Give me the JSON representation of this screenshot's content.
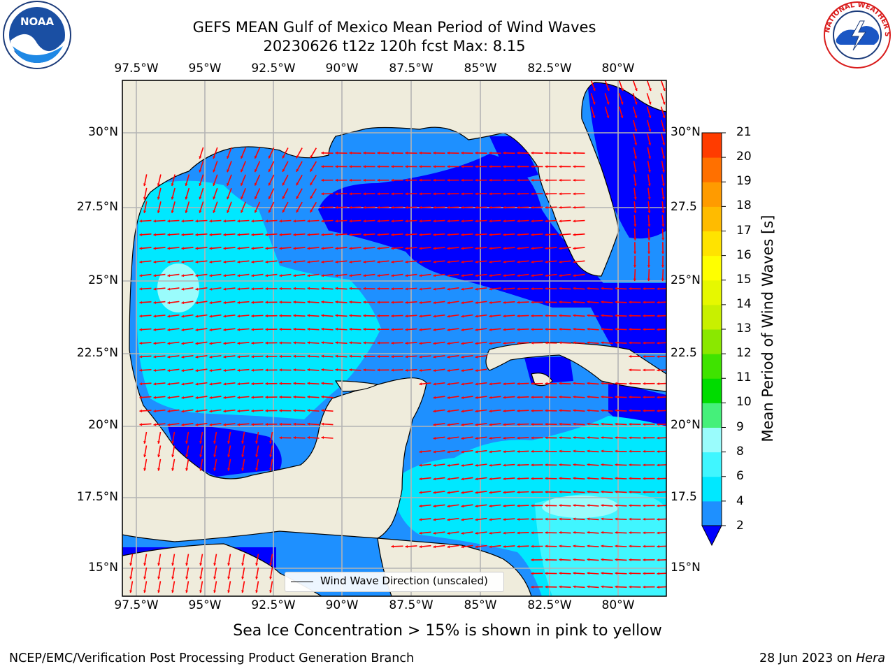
{
  "title": {
    "line1": "GEFS MEAN Gulf of Mexico Mean Period of Wind Waves",
    "line2": "20230626 t12z 120h fcst   Max: 8.15"
  },
  "logos": {
    "left": {
      "name": "noaa-logo",
      "text": "NOAA"
    },
    "right": {
      "name": "nws-logo",
      "text": "NATIONAL WEATHER SERVICE"
    }
  },
  "map": {
    "lon_ticks": [
      "97.5°W",
      "95°W",
      "92.5°W",
      "90°W",
      "87.5°W",
      "85°W",
      "82.5°W",
      "80°W"
    ],
    "lat_ticks_left": [
      "30°N",
      "27.5°N",
      "25°N",
      "22.5°N",
      "20°N",
      "17.5°N",
      "15°N"
    ],
    "lat_ticks_right": [
      "30°N",
      "27.5",
      "25°N",
      "22.5",
      "20°N",
      "17.5",
      "15°N"
    ],
    "legend_label": "Wind Wave Direction (unscaled)",
    "land_color": "#efecdc",
    "arrow_color": "#ff0000",
    "grid_color": "#b4b4b4"
  },
  "colorbar": {
    "label": "Mean Period of Wind Waves [s]",
    "ticks": [
      "2",
      "4",
      "6",
      "8",
      "9",
      "10",
      "11",
      "12",
      "13",
      "14",
      "15",
      "16",
      "17",
      "18",
      "19",
      "20",
      "21"
    ],
    "colors": [
      "#1e90ff",
      "#00e8ff",
      "#40f6ff",
      "#9afcfc",
      "#45f07a",
      "#00dc00",
      "#3fe300",
      "#8ae800",
      "#c8f000",
      "#e6f800",
      "#ffff00",
      "#ffe300",
      "#ffbb00",
      "#ff9b00",
      "#ff7000",
      "#ff3c00",
      "#ff0000"
    ],
    "under_color": "#0000ff"
  },
  "caption": "Sea Ice Concentration > 15% is shown in pink to yellow",
  "footer": {
    "left": "NCEP/EMC/Verification Post Processing Product Generation Branch",
    "right_date": "28 Jun 2023 on ",
    "right_host": "Hera"
  }
}
